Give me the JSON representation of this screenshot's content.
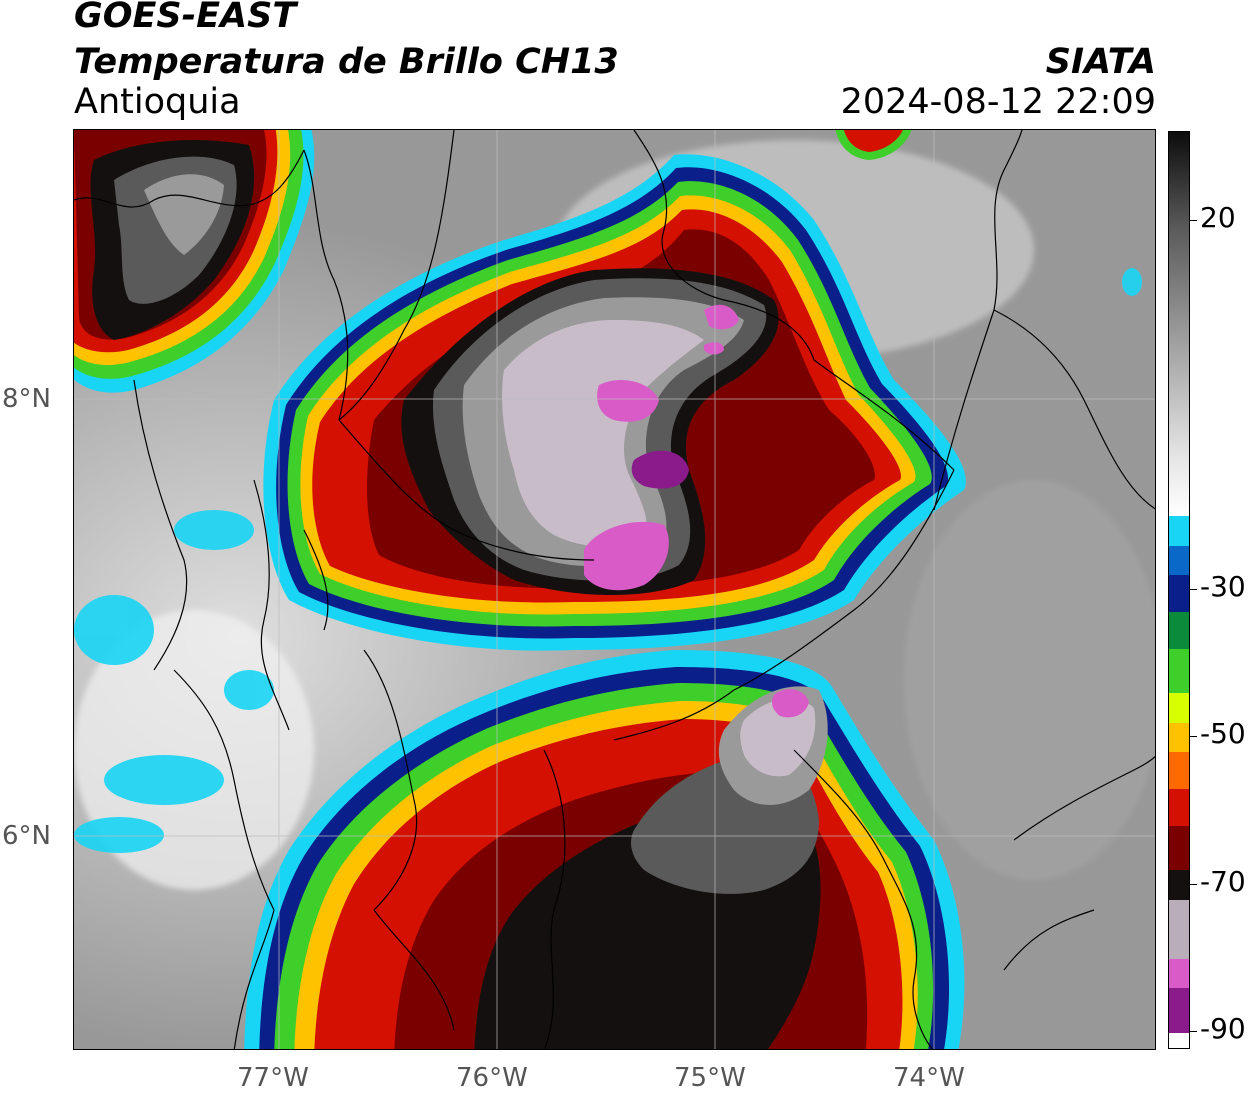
{
  "header": {
    "satellite": "GOES-EAST",
    "product": "Temperatura de Brillo CH13",
    "region": "Antioquia",
    "organization": "SIATA",
    "timestamp": "2024-08-12 22:09"
  },
  "map": {
    "lat_labels": [
      "8°N",
      "6°N"
    ],
    "lon_labels": [
      "77°W",
      "76°W",
      "75°W",
      "74°W"
    ]
  },
  "colorbar": {
    "tick_labels": [
      "20",
      "-30",
      "-50",
      "-70",
      "-90"
    ],
    "tick_values": [
      20,
      -30,
      -50,
      -70,
      -90
    ],
    "range": [
      -92,
      32
    ],
    "segments": [
      {
        "from": -92,
        "to": -90,
        "color": "#ffffff"
      },
      {
        "from": -90,
        "to": -84,
        "color": "#8b1a8b"
      },
      {
        "from": -84,
        "to": -80,
        "color": "#d95bc8"
      },
      {
        "from": -80,
        "to": -72,
        "color": "#b8adb8"
      },
      {
        "from": -72,
        "to": -68,
        "color": "#151010"
      },
      {
        "from": -68,
        "to": -62,
        "color": "#7a0000"
      },
      {
        "from": -62,
        "to": -57,
        "color": "#d41000"
      },
      {
        "from": -57,
        "to": -52,
        "color": "#ff6a00"
      },
      {
        "from": -52,
        "to": -48,
        "color": "#ffc200"
      },
      {
        "from": -48,
        "to": -44,
        "color": "#d8ff00"
      },
      {
        "from": -44,
        "to": -38,
        "color": "#3ecf2a"
      },
      {
        "from": -38,
        "to": -33,
        "color": "#0a8a3a"
      },
      {
        "from": -33,
        "to": -28,
        "color": "#0a1f8a"
      },
      {
        "from": -28,
        "to": -24,
        "color": "#0a68c8"
      },
      {
        "from": -24,
        "to": -20,
        "color": "#19d5f5"
      },
      {
        "from": -20,
        "to": 32,
        "color": "gradient"
      }
    ]
  }
}
